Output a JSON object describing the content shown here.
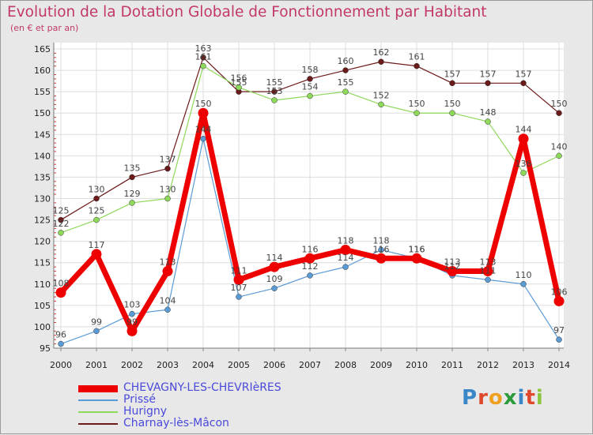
{
  "title": "Evolution de la Dotation Globale de Fonctionnement par Habitant",
  "subtitle": "(en € et par an)",
  "logo_text": "Proxiti",
  "chart_data": {
    "type": "line",
    "title": "Evolution de la Dotation Globale de Fonctionnement par Habitant",
    "subtitle": "(en € et par an)",
    "xlabel": "",
    "ylabel": "",
    "categories": [
      "2000",
      "2001",
      "2002",
      "2003",
      "2004",
      "2005",
      "2006",
      "2007",
      "2008",
      "2009",
      "2010",
      "2011",
      "2012",
      "2013",
      "2014"
    ],
    "ylim": [
      95,
      165
    ],
    "yticks": [
      95,
      100,
      105,
      110,
      115,
      120,
      125,
      130,
      135,
      140,
      145,
      150,
      155,
      160,
      165
    ],
    "grid": true,
    "legend_position": "bottom-left",
    "series": [
      {
        "name": "Charnay-lès-Mâcon",
        "color": "#6b1a1a",
        "width": 1.2,
        "marker": 3.5,
        "values": [
          125,
          130,
          135,
          137,
          163,
          155,
          155,
          158,
          160,
          162,
          161,
          157,
          157,
          157,
          150
        ]
      },
      {
        "name": "Hurigny",
        "color": "#8ed85a",
        "width": 1.2,
        "marker": 3.5,
        "values": [
          122,
          125,
          129,
          130,
          161,
          156,
          153,
          154,
          155,
          152,
          150,
          150,
          148,
          136,
          140
        ]
      },
      {
        "name": "Prissé",
        "color": "#5b9bd5",
        "width": 1.2,
        "marker": 3.5,
        "values": [
          96,
          99,
          103,
          104,
          144,
          107,
          109,
          112,
          114,
          118,
          116,
          112,
          111,
          110,
          97
        ]
      },
      {
        "name": "CHEVAGNY-LES-CHEVRIèRES",
        "color": "#ee0000",
        "width": 7,
        "marker": 6.5,
        "values": [
          108,
          117,
          99,
          113,
          150,
          111,
          114,
          116,
          118,
          116,
          116,
          113,
          113,
          144,
          106
        ]
      }
    ],
    "legend_order": [
      "CHEVAGNY-LES-CHEVRIèRES",
      "Prissé",
      "Hurigny",
      "Charnay-lès-Mâcon"
    ]
  }
}
